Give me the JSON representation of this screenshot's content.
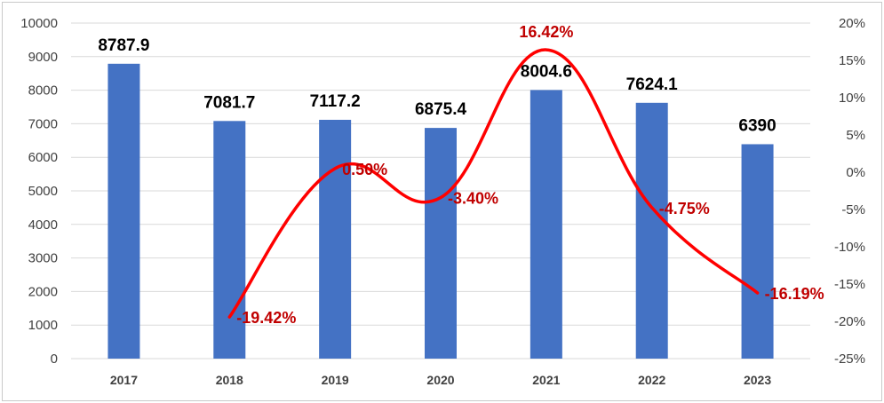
{
  "chart_data": {
    "type": "bar",
    "categories": [
      "2017",
      "2018",
      "2019",
      "2020",
      "2021",
      "2022",
      "2023"
    ],
    "series": [
      {
        "type": "bar",
        "axis": "left",
        "values": [
          8787.9,
          7081.7,
          7117.2,
          6875.4,
          8004.6,
          7624.1,
          6390
        ],
        "labels": [
          "8787.9",
          "7081.7",
          "7117.2",
          "6875.4",
          "8004.6",
          "7624.1",
          "6390"
        ],
        "color": "#4472c4"
      },
      {
        "type": "line",
        "axis": "right",
        "smooth": true,
        "x": [
          "2018",
          "2019",
          "2020",
          "2021",
          "2022",
          "2023"
        ],
        "values": [
          -19.42,
          0.5,
          -3.4,
          16.42,
          -4.75,
          -16.19
        ],
        "labels": [
          "-19.42%",
          "0.50%",
          "-3.40%",
          "16.42%",
          "-4.75%",
          "-16.19%"
        ],
        "color": "#ff0000",
        "label_color": "#c00000"
      }
    ],
    "y_left": {
      "ylim": [
        0,
        10000
      ],
      "ticks": [
        "0",
        "1000",
        "2000",
        "3000",
        "4000",
        "5000",
        "6000",
        "7000",
        "8000",
        "9000",
        "10000"
      ]
    },
    "y_right": {
      "ylim": [
        -25,
        20
      ],
      "ticks": [
        "-25%",
        "-20%",
        "-15%",
        "-10%",
        "-5%",
        "0%",
        "5%",
        "10%",
        "15%",
        "20%"
      ]
    },
    "grid": true,
    "legend": "none",
    "title": "",
    "xlabel": "",
    "ylabel": ""
  }
}
